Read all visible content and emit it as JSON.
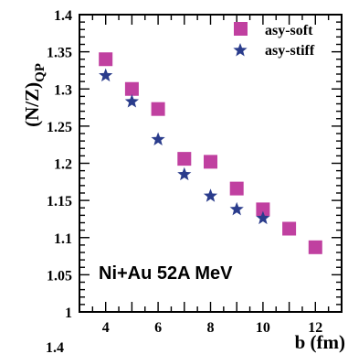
{
  "chart_data": {
    "type": "scatter",
    "xlabel": "b (fm)",
    "ylabel": "(N/Z)",
    "ylabel_sub": "QP",
    "xlim": [
      3.0,
      13.0
    ],
    "ylim": [
      1.0,
      1.4
    ],
    "x_ticks": [
      4,
      6,
      8,
      10,
      12
    ],
    "y_ticks": [
      1,
      1.05,
      1.1,
      1.15,
      1.2,
      1.25,
      1.3,
      1.35,
      1.4
    ],
    "annotation": "Ni+Au 52A MeV",
    "stray_text": "1.4",
    "legend_position": "top-right",
    "colors": {
      "asy_soft": "#c040a0",
      "asy_stiff": "#2a3c8c"
    },
    "series": [
      {
        "name": "asy-soft",
        "marker": "square",
        "x": [
          4,
          5,
          6,
          7,
          8,
          9,
          10,
          11,
          12
        ],
        "y": [
          1.34,
          1.3,
          1.273,
          1.206,
          1.202,
          1.166,
          1.138,
          1.112,
          1.087
        ]
      },
      {
        "name": "asy-stiff",
        "marker": "star",
        "x": [
          4,
          5,
          6,
          7,
          8,
          9,
          10
        ],
        "y": [
          1.318,
          1.283,
          1.232,
          1.185,
          1.156,
          1.138,
          1.126
        ]
      }
    ]
  }
}
